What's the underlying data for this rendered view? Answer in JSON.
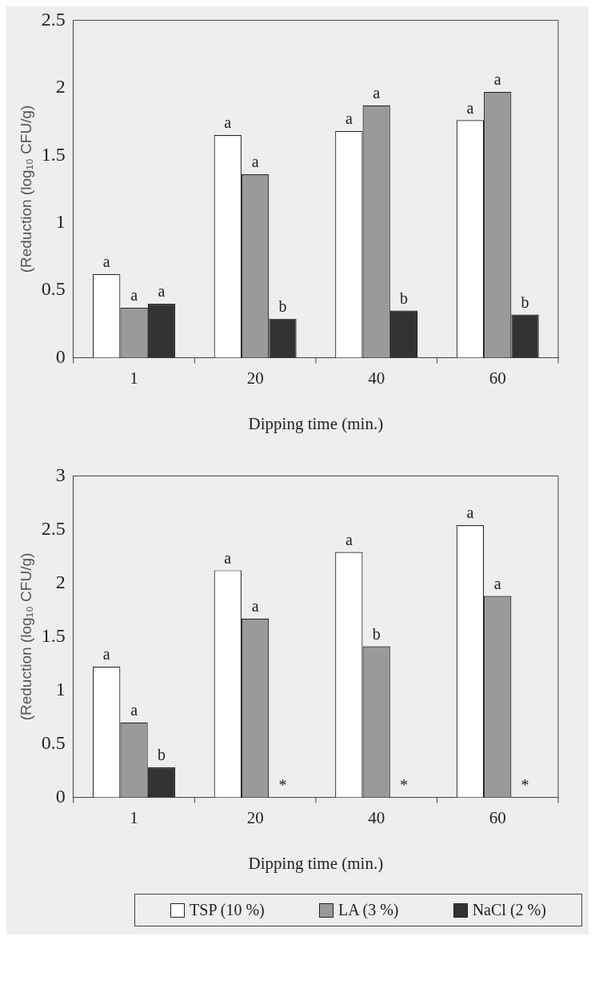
{
  "chart_data": [
    {
      "type": "bar",
      "xlabel": "Dipping time (min.)",
      "ylabel": "(Reduction (log₁₀ CFU/g)",
      "categories": [
        "1",
        "20",
        "40",
        "60"
      ],
      "series": [
        {
          "color": "#ffffff",
          "values": [
            0.62,
            1.65,
            1.68,
            1.76
          ],
          "value_labels": [
            "a",
            "a",
            "a",
            "a"
          ]
        },
        {
          "color": "#9a9a9a",
          "values": [
            0.37,
            1.36,
            1.87,
            1.97
          ],
          "value_labels": [
            "a",
            "a",
            "a",
            "a"
          ]
        },
        {
          "color": "#333333",
          "values": [
            0.4,
            0.29,
            0.35,
            0.32
          ],
          "value_labels": [
            "a",
            "b",
            "b",
            "b"
          ]
        }
      ],
      "ylim": [
        0,
        2.5
      ],
      "yticks": [
        0,
        0.5,
        1,
        1.5,
        2,
        2.5
      ],
      "grid": false,
      "legend": false
    },
    {
      "type": "bar",
      "xlabel": "Dipping time (min.)",
      "ylabel": "(Reduction (log₁₀ CFU/g)",
      "categories": [
        "1",
        "20",
        "40",
        "60"
      ],
      "series": [
        {
          "name": "TSP (10 %)",
          "color": "#ffffff",
          "values": [
            1.22,
            2.12,
            2.29,
            2.54
          ],
          "value_labels": [
            "a",
            "a",
            "a",
            "a"
          ]
        },
        {
          "name": "LA (3 %)",
          "color": "#9a9a9a",
          "values": [
            0.7,
            1.67,
            1.41,
            1.88
          ],
          "value_labels": [
            "a",
            "a",
            "b",
            "a"
          ]
        },
        {
          "name": "NaCl (2 %)",
          "color": "#333333",
          "values": [
            0.28,
            null,
            null,
            null
          ],
          "value_labels": [
            "b",
            "*",
            "*",
            "*"
          ]
        }
      ],
      "ylim": [
        0,
        3
      ],
      "yticks": [
        0,
        0.5,
        1,
        1.5,
        2,
        2.5,
        3
      ],
      "grid": false,
      "legend": "bottom"
    }
  ]
}
